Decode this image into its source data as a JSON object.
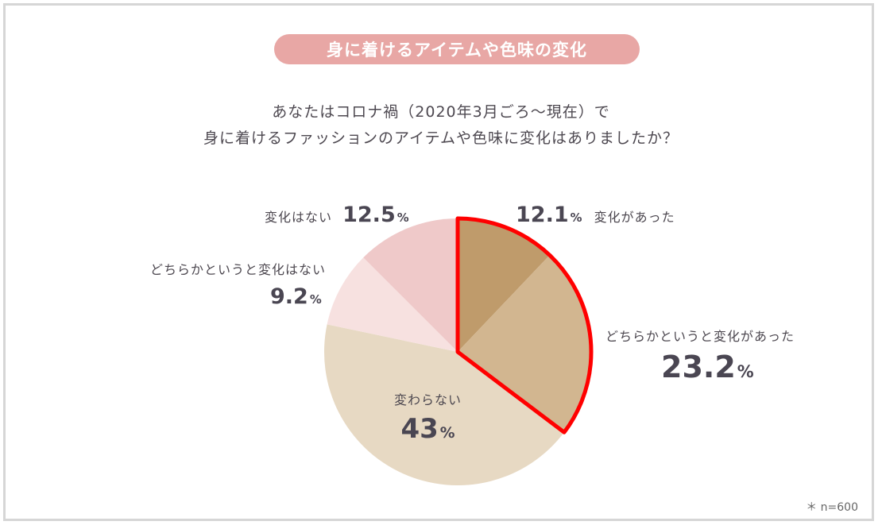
{
  "title": "身に着けるアイテムや色味の変化",
  "question": {
    "line1": "あなたはコロナ禍（2020年3月ごろ〜現在）で",
    "line2": "身に着けるファッションのアイテムや色味に変化はありましたか？"
  },
  "note": "＊ n=600",
  "chart_data": {
    "type": "pie",
    "slices": [
      {
        "label": "変化があった",
        "value": 12.1,
        "value_text": "12.1",
        "color": "#bf9b6b"
      },
      {
        "label": "どちらかというと変化があった",
        "value": 23.2,
        "value_text": "23.2",
        "color": "#d2b690"
      },
      {
        "label": "変わらない",
        "value": 43,
        "value_text": "43",
        "color": "#e7d9c3"
      },
      {
        "label": "どちらかというと変化はない",
        "value": 9.2,
        "value_text": "9.2",
        "color": "#f7e1e0"
      },
      {
        "label": "変化はない",
        "value": 12.5,
        "value_text": "12.5",
        "color": "#efc9c9"
      }
    ],
    "unit": "%",
    "highlight": {
      "slices": [
        0,
        1
      ],
      "color": "#ff0000"
    }
  }
}
